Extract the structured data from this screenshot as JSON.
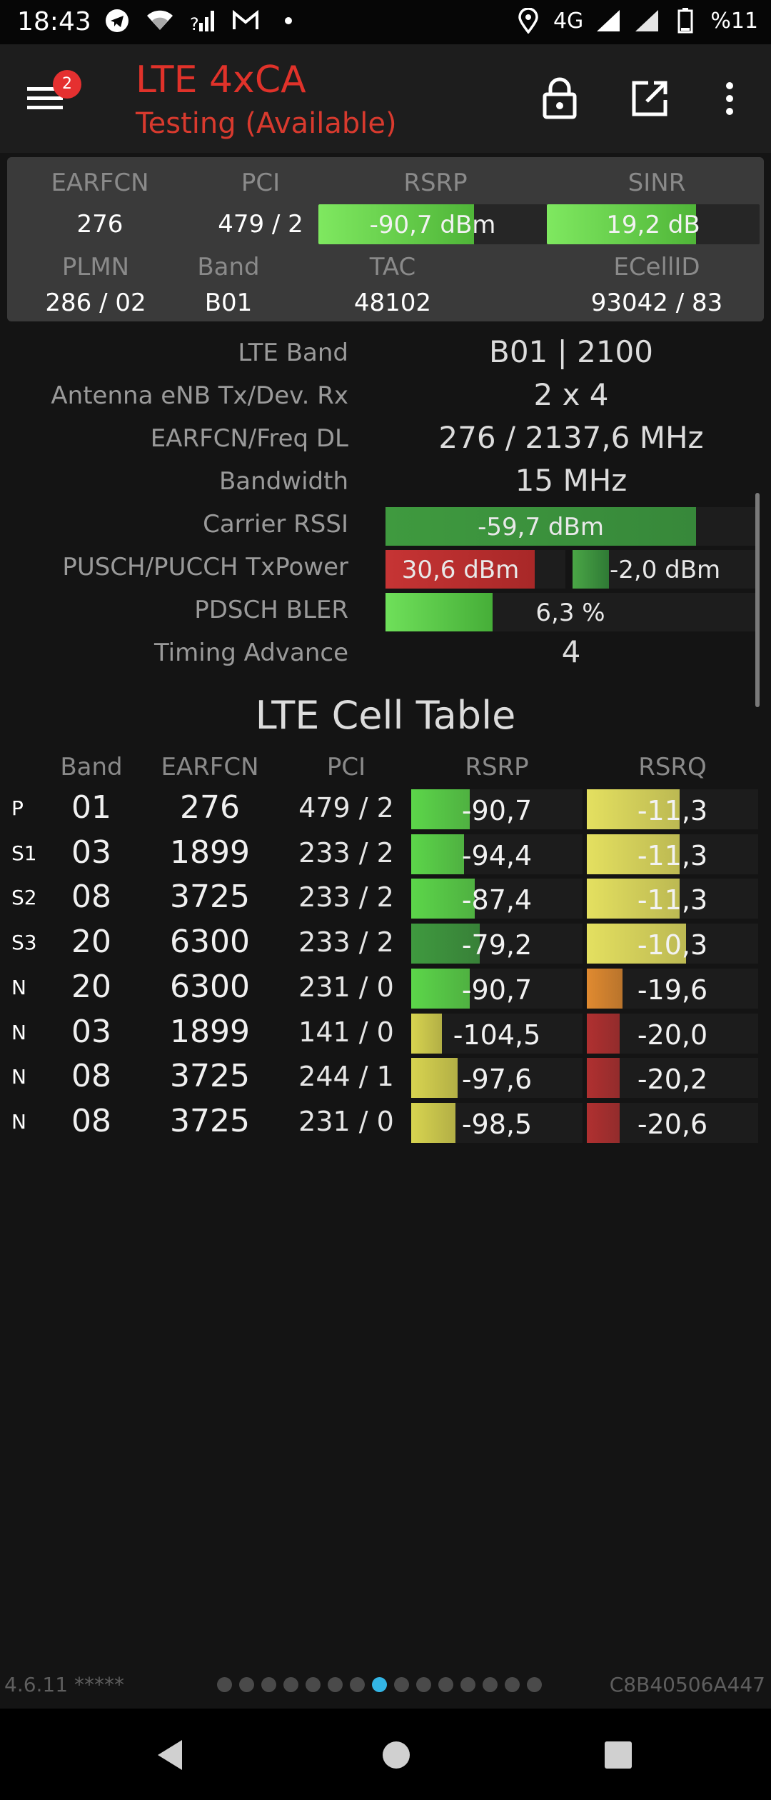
{
  "status_bar": {
    "time": "18:43",
    "network": "4G",
    "battery": "%11",
    "icons_left": [
      "telegram-icon",
      "wifi-icon",
      "signal-question-icon",
      "gmail-icon",
      "dot-icon"
    ],
    "icons_right": [
      "location-icon",
      "signal-icon",
      "signal-icon",
      "battery-icon"
    ]
  },
  "app_bar": {
    "badge_count": "2",
    "title": "LTE 4xCA",
    "subtitle": "Testing (Available)",
    "title_color": "#e0322a"
  },
  "summary": {
    "labels": {
      "earfcn": "EARFCN",
      "pci": "PCI",
      "rsrp": "RSRP",
      "sinr": "SINR",
      "plmn": "PLMN",
      "band": "Band",
      "tac": "TAC",
      "ecellid": "ECellID"
    },
    "earfcn": "276",
    "pci": "479 / 2",
    "rsrp": {
      "text": "-90,7 dBm",
      "level": 0.68
    },
    "sinr": {
      "text": "19,2 dB",
      "level": 0.7
    },
    "plmn": "286 / 02",
    "band": "B01",
    "tac": "48102",
    "ecellid": "93042 / 83"
  },
  "details": {
    "lte_band": {
      "label": "LTE Band",
      "value": "B01 | 2100"
    },
    "antenna": {
      "label": "Antenna eNB Tx/Dev. Rx",
      "value": "2 x 4"
    },
    "earfcn_freq": {
      "label": "EARFCN/Freq DL",
      "value": "276 / 2137,6 MHz"
    },
    "bandwidth": {
      "label": "Bandwidth",
      "value": "15 MHz"
    },
    "carrier_rssi": {
      "label": "Carrier RSSI",
      "value": "-59,7 dBm",
      "level": 0.84
    },
    "tx_power": {
      "label": "PUSCH/PUCCH TxPower",
      "pusch": "30,6 dBm",
      "pucch": "-2,0 dBm",
      "pusch_level": 0.83,
      "pucch_level": 0.2
    },
    "bler": {
      "label": "PDSCH BLER",
      "value": "6,3 %",
      "level": 0.29
    },
    "timing_advance": {
      "label": "Timing Advance",
      "value": "4"
    }
  },
  "cell_table": {
    "title": "LTE Cell Table",
    "headers": {
      "band": "Band",
      "earfcn": "EARFCN",
      "pci": "PCI",
      "rsrp": "RSRP",
      "rsrq": "RSRQ"
    },
    "rows": [
      {
        "type": "P",
        "band": "01",
        "earfcn": "276",
        "pci": "479 / 2",
        "rsrp": "-90,7",
        "rsrp_level": 0.34,
        "rsrp_color": "#5cd64a",
        "rsrq": "-11,3",
        "rsrq_level": 0.54,
        "rsrq_color": "#e4e060"
      },
      {
        "type": "S1",
        "band": "03",
        "earfcn": "1899",
        "pci": "233 / 2",
        "rsrp": "-94,4",
        "rsrp_level": 0.31,
        "rsrp_color": "#5cd64a",
        "rsrq": "-11,3",
        "rsrq_level": 0.54,
        "rsrq_color": "#e4e060"
      },
      {
        "type": "S2",
        "band": "08",
        "earfcn": "3725",
        "pci": "233 / 2",
        "rsrp": "-87,4",
        "rsrp_level": 0.37,
        "rsrp_color": "#5cd64a",
        "rsrq": "-11,3",
        "rsrq_level": 0.54,
        "rsrq_color": "#e4e060"
      },
      {
        "type": "S3",
        "band": "20",
        "earfcn": "6300",
        "pci": "233 / 2",
        "rsrp": "-79,2",
        "rsrp_level": 0.4,
        "rsrp_color": "#3f9a3f",
        "rsrq": "-10,3",
        "rsrq_level": 0.58,
        "rsrq_color": "#e4e060"
      },
      {
        "type": "N",
        "band": "20",
        "earfcn": "6300",
        "pci": "231 / 0",
        "rsrp": "-90,7",
        "rsrp_level": 0.34,
        "rsrp_color": "#5cd64a",
        "rsrq": "-19,6",
        "rsrq_level": 0.21,
        "rsrq_color": "#e08a30"
      },
      {
        "type": "N",
        "band": "03",
        "earfcn": "1899",
        "pci": "141 / 0",
        "rsrp": "-104,5",
        "rsrp_level": 0.18,
        "rsrp_color": "#d8d450",
        "rsrq": "-20,0",
        "rsrq_level": 0.19,
        "rsrq_color": "#b03030"
      },
      {
        "type": "N",
        "band": "08",
        "earfcn": "3725",
        "pci": "244 / 1",
        "rsrp": "-97,6",
        "rsrp_level": 0.27,
        "rsrp_color": "#d8d450",
        "rsrq": "-20,2",
        "rsrq_level": 0.19,
        "rsrq_color": "#b03030"
      },
      {
        "type": "N",
        "band": "08",
        "earfcn": "3725",
        "pci": "231 / 0",
        "rsrp": "-98,5",
        "rsrp_level": 0.26,
        "rsrp_color": "#d8d450",
        "rsrq": "-20,6",
        "rsrq_level": 0.19,
        "rsrq_color": "#b03030"
      }
    ]
  },
  "footer": {
    "version": "4.6.11 *****",
    "device_id": "C8B40506A447",
    "page_count": 15,
    "active_page": 7
  },
  "nav_bar": {
    "icons": [
      "back-icon",
      "home-icon",
      "recents-icon"
    ]
  }
}
